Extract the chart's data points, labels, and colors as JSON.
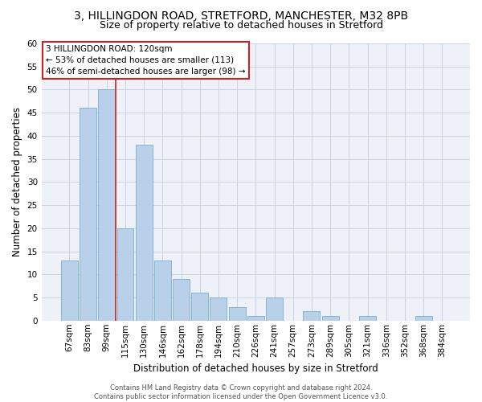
{
  "title_line1": "3, HILLINGDON ROAD, STRETFORD, MANCHESTER, M32 8PB",
  "title_line2": "Size of property relative to detached houses in Stretford",
  "xlabel": "Distribution of detached houses by size in Stretford",
  "ylabel": "Number of detached properties",
  "footer1": "Contains HM Land Registry data © Crown copyright and database right 2024.",
  "footer2": "Contains public sector information licensed under the Open Government Licence v3.0.",
  "bar_labels": [
    "67sqm",
    "83sqm",
    "99sqm",
    "115sqm",
    "130sqm",
    "146sqm",
    "162sqm",
    "178sqm",
    "194sqm",
    "210sqm",
    "226sqm",
    "241sqm",
    "257sqm",
    "273sqm",
    "289sqm",
    "305sqm",
    "321sqm",
    "336sqm",
    "352sqm",
    "368sqm",
    "384sqm"
  ],
  "bar_values": [
    13,
    46,
    50,
    20,
    38,
    13,
    9,
    6,
    5,
    3,
    1,
    5,
    0,
    2,
    1,
    0,
    1,
    0,
    0,
    1,
    0
  ],
  "bar_color": "#b8d0ea",
  "bar_edge_color": "#7aadcf",
  "grid_color": "#c8d4e4",
  "bg_color": "#eef2f8",
  "annotation_line1": "3 HILLINGDON ROAD: 120sqm",
  "annotation_line2": "← 53% of detached houses are smaller (113)",
  "annotation_line3": "46% of semi-detached houses are larger (98) →",
  "annotation_box_facecolor": "#ffffff",
  "annotation_box_edgecolor": "#cc2222",
  "red_line_color": "#cc2222",
  "red_line_x": 2.5,
  "ylim": [
    0,
    60
  ],
  "yticks": [
    0,
    5,
    10,
    15,
    20,
    25,
    30,
    35,
    40,
    45,
    50,
    55,
    60
  ],
  "title_fontsize": 10,
  "subtitle_fontsize": 9,
  "axis_label_fontsize": 8.5,
  "tick_fontsize": 7.5,
  "annotation_fontsize": 7.5,
  "footer_fontsize": 6
}
